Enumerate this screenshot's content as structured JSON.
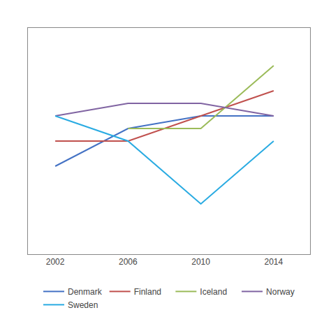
{
  "chart_data": {
    "type": "line",
    "x": [
      2002,
      2006,
      2010,
      2014
    ],
    "series": [
      {
        "name": "Denmark",
        "color": "#4472C4",
        "values": [
          7.2,
          7.5,
          7.6,
          7.6
        ]
      },
      {
        "name": "Finland",
        "color": "#C0504D",
        "values": [
          7.4,
          7.4,
          7.6,
          7.8
        ]
      },
      {
        "name": "Iceland",
        "color": "#9BBB59",
        "values": [
          null,
          7.5,
          7.5,
          8.0
        ]
      },
      {
        "name": "Norway",
        "color": "#8064A2",
        "values": [
          7.6,
          7.7,
          7.7,
          7.6
        ]
      },
      {
        "name": "Sweden",
        "color": "#29ABE2",
        "values": [
          7.6,
          7.4,
          6.9,
          7.4
        ]
      }
    ],
    "xlim": [
      2000.5,
      2016
    ],
    "xticks": [
      2002,
      2006,
      2010,
      2014
    ],
    "ylim": [
      6.5,
      8.3
    ],
    "yticks": [],
    "grid": false,
    "tick_labels": "x",
    "legend": "bottom"
  }
}
